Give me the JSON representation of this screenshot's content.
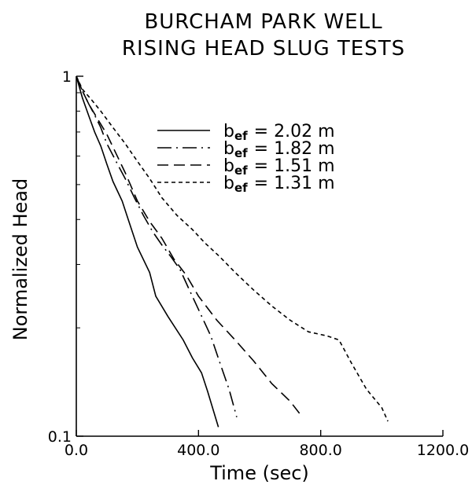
{
  "chart_data": {
    "type": "line",
    "title_lines": [
      "BURCHAM PARK WELL",
      "RISING HEAD SLUG TESTS"
    ],
    "xlabel": "Time (sec)",
    "ylabel": "Normalized Head",
    "xlim": [
      0,
      1200
    ],
    "ylim": [
      0.1,
      1
    ],
    "y_scale": "log",
    "grid": false,
    "legend_position": "top-right",
    "x_ticks": [
      {
        "value": 0,
        "label": "0.0"
      },
      {
        "value": 400,
        "label": "400.0"
      },
      {
        "value": 800,
        "label": "800.0"
      },
      {
        "value": 1200,
        "label": "1200.0"
      }
    ],
    "y_ticks": [
      {
        "value": 1,
        "label": "1"
      },
      {
        "value": 0.1,
        "label": "0.1"
      }
    ],
    "series": [
      {
        "name": "b_ef = 2.02 m",
        "legend_symbol": "b",
        "legend_subscript": "ef",
        "legend_value": "=  2.02  m",
        "style": "solid",
        "x": [
          0,
          20,
          40,
          60,
          80,
          100,
          120,
          150,
          170,
          200,
          240,
          260,
          300,
          350,
          380,
          410,
          430,
          465
        ],
        "y": [
          1.0,
          0.87,
          0.78,
          0.7,
          0.64,
          0.57,
          0.51,
          0.45,
          0.4,
          0.335,
          0.285,
          0.245,
          0.215,
          0.185,
          0.165,
          0.15,
          0.133,
          0.106
        ]
      },
      {
        "name": "b_ef = 1.82 m",
        "legend_symbol": "b",
        "legend_subscript": "ef",
        "legend_value": "=  1.82  m",
        "style": "dash-dot",
        "x": [
          0,
          20,
          40,
          60,
          80,
          100,
          130,
          160,
          190,
          220,
          250,
          280,
          310,
          340,
          370,
          400,
          440,
          470,
          500,
          525
        ],
        "y": [
          1.0,
          0.91,
          0.84,
          0.78,
          0.72,
          0.65,
          0.58,
          0.52,
          0.46,
          0.41,
          0.37,
          0.34,
          0.315,
          0.29,
          0.255,
          0.225,
          0.19,
          0.16,
          0.135,
          0.113
        ]
      },
      {
        "name": "b_ef = 1.51 m",
        "legend_symbol": "b",
        "legend_subscript": "ef",
        "legend_value": "=  1.51  m",
        "style": "dashed",
        "x": [
          0,
          20,
          40,
          70,
          100,
          130,
          160,
          200,
          240,
          280,
          320,
          360,
          400,
          460,
          520,
          580,
          640,
          700,
          740
        ],
        "y": [
          1.0,
          0.91,
          0.84,
          0.76,
          0.69,
          0.61,
          0.54,
          0.45,
          0.395,
          0.355,
          0.31,
          0.28,
          0.245,
          0.21,
          0.185,
          0.162,
          0.14,
          0.125,
          0.113
        ]
      },
      {
        "name": "b_ef = 1.31 m",
        "legend_symbol": "b",
        "legend_subscript": "ef",
        "legend_value": "=  1.31  m",
        "style": "dotted",
        "x": [
          0,
          20,
          50,
          80,
          120,
          160,
          200,
          240,
          280,
          330,
          380,
          420,
          470,
          520,
          580,
          640,
          700,
          760,
          820,
          860,
          900,
          950,
          1000,
          1020
        ],
        "y": [
          1.0,
          0.92,
          0.86,
          0.8,
          0.72,
          0.65,
          0.58,
          0.52,
          0.46,
          0.41,
          0.375,
          0.345,
          0.315,
          0.285,
          0.255,
          0.23,
          0.21,
          0.195,
          0.19,
          0.185,
          0.16,
          0.135,
          0.12,
          0.11
        ]
      }
    ]
  }
}
